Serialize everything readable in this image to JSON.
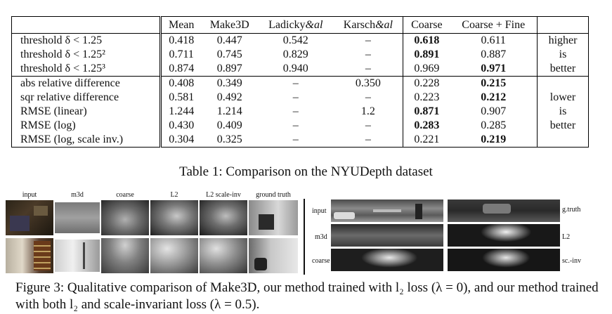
{
  "table": {
    "headers": [
      "",
      "Mean",
      "Make3D",
      "Ladicky&al",
      "Karsch&al",
      "Coarse",
      "Coarse + Fine",
      ""
    ],
    "group1": [
      {
        "metric": "threshold δ < 1.25",
        "mean": "0.418",
        "make3d": "0.447",
        "ladicky": "0.542",
        "karsch": "–",
        "coarse": "0.618",
        "fine": "0.611",
        "note": "higher",
        "bold": "coarse"
      },
      {
        "metric": "threshold δ < 1.25²",
        "mean": "0.711",
        "make3d": "0.745",
        "ladicky": "0.829",
        "karsch": "–",
        "coarse": "0.891",
        "fine": "0.887",
        "note": "is",
        "bold": "coarse"
      },
      {
        "metric": "threshold δ < 1.25³",
        "mean": "0.874",
        "make3d": "0.897",
        "ladicky": "0.940",
        "karsch": "–",
        "coarse": "0.969",
        "fine": "0.971",
        "note": "better",
        "bold": "fine"
      }
    ],
    "group2": [
      {
        "metric": "abs relative difference",
        "mean": "0.408",
        "make3d": "0.349",
        "ladicky": "–",
        "karsch": "0.350",
        "coarse": "0.228",
        "fine": "0.215",
        "note": "",
        "bold": "fine"
      },
      {
        "metric": "sqr relative difference",
        "mean": "0.581",
        "make3d": "0.492",
        "ladicky": "–",
        "karsch": "–",
        "coarse": "0.223",
        "fine": "0.212",
        "note": "lower",
        "bold": "fine"
      },
      {
        "metric": "RMSE (linear)",
        "mean": "1.244",
        "make3d": "1.214",
        "ladicky": "–",
        "karsch": "1.2",
        "coarse": "0.871",
        "fine": "0.907",
        "note": "is",
        "bold": "coarse"
      },
      {
        "metric": "RMSE (log)",
        "mean": "0.430",
        "make3d": "0.409",
        "ladicky": "–",
        "karsch": "–",
        "coarse": "0.283",
        "fine": "0.285",
        "note": "better",
        "bold": "coarse"
      },
      {
        "metric": "RMSE (log, scale inv.)",
        "mean": "0.304",
        "make3d": "0.325",
        "ladicky": "–",
        "karsch": "–",
        "coarse": "0.221",
        "fine": "0.219",
        "note": "",
        "bold": "fine"
      }
    ],
    "caption": "Table 1: Comparison on the NYUDepth dataset"
  },
  "figure": {
    "left_labels": [
      "input",
      "m3d",
      "coarse",
      "L2",
      "L2 scale-inv",
      "ground truth"
    ],
    "right_row_labels_left": [
      "input",
      "m3d",
      "coarse"
    ],
    "right_row_labels_right": [
      "g.truth",
      "L2",
      "sc.-inv"
    ],
    "caption": "Figure 3: Qualitative comparison of Make3D, our method trained with l₂ loss (λ = 0), and our method trained with both l₂ and scale-invariant loss (λ = 0.5)."
  }
}
